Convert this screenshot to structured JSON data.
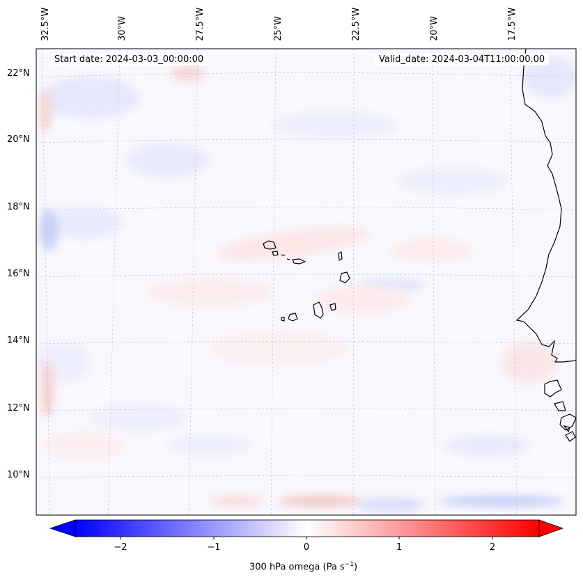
{
  "header": {
    "start_date": "Start date: 2024-03-03_00:00:00",
    "valid_date": "Valid_date: 2024-03-04T11:00:00.00"
  },
  "longitude_labels": [
    "32.5°W",
    "30°W",
    "27.5°W",
    "25°W",
    "22.5°W",
    "20°W",
    "17.5°W"
  ],
  "latitude_labels": [
    "22°N",
    "20°N",
    "18°N",
    "16°N",
    "14°N",
    "12°N",
    "10°N"
  ],
  "colorbar": {
    "ticks": [
      "−2",
      "−1",
      "0",
      "1",
      "2"
    ],
    "label_main": "300 hPa omega (Pa s",
    "label_exp": "−1",
    "label_close": ")",
    "min": -2.6,
    "max": 2.6
  },
  "colors": {
    "negative": "#0000ff",
    "neutral": "#ffffff",
    "positive": "#ff0000",
    "coastline": "#000000",
    "gridline": "#b8b8c8"
  }
}
